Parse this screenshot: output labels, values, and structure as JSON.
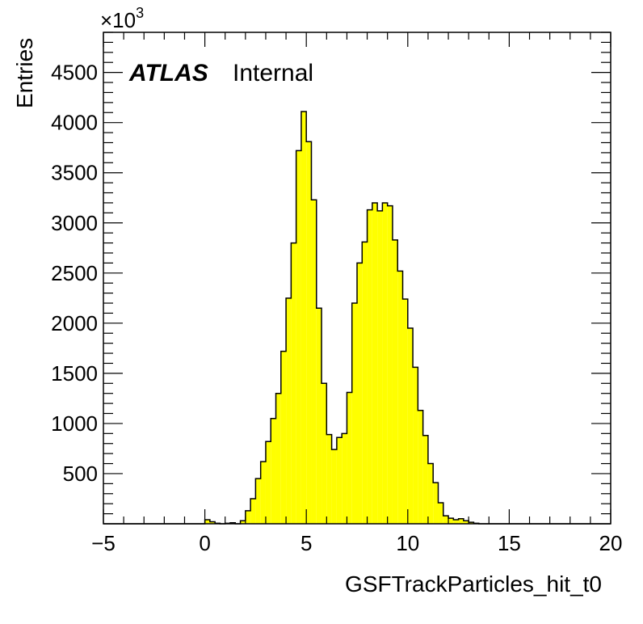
{
  "chart_data": {
    "type": "bar",
    "style": "histogram-step",
    "fill_color": "#ffff00",
    "line_color": "#000000",
    "xlabel": "GSFTrackParticles_hit_t0",
    "ylabel": "Entries",
    "y_scale_label": "×10",
    "y_scale_exponent": "3",
    "y_multiplier": 1000,
    "xlim": [
      -5,
      20
    ],
    "ylim": [
      0,
      4900
    ],
    "x_ticks": [
      "−5",
      "0",
      "5",
      "10",
      "15",
      "20"
    ],
    "x_tick_values": [
      -5,
      0,
      5,
      10,
      15,
      20
    ],
    "y_ticks": [
      "500",
      "1000",
      "1500",
      "2000",
      "2500",
      "3000",
      "3500",
      "4000",
      "4500"
    ],
    "y_tick_values": [
      500,
      1000,
      1500,
      2000,
      2500,
      3000,
      3500,
      4000,
      4500
    ],
    "bin_width": 0.25,
    "bin_edges_start": -5,
    "series": [
      {
        "values": [
          0,
          0,
          0,
          0,
          0,
          0,
          0,
          0,
          0,
          0,
          0,
          0,
          0,
          0,
          0,
          0,
          0,
          0,
          0,
          0,
          40,
          20,
          5,
          0,
          5,
          10,
          0,
          30,
          130,
          250,
          450,
          620,
          820,
          1050,
          1300,
          1720,
          2250,
          2800,
          3720,
          4110,
          3810,
          3230,
          2150,
          1400,
          890,
          740,
          860,
          900,
          1310,
          2200,
          2600,
          2810,
          3130,
          3200,
          3120,
          3200,
          3170,
          2830,
          2520,
          2240,
          1950,
          1560,
          1130,
          880,
          600,
          410,
          210,
          80,
          55,
          40,
          50,
          30,
          15,
          5,
          0,
          0,
          0,
          0,
          0,
          0,
          0,
          0,
          0,
          0,
          0,
          0,
          0,
          0,
          0,
          0,
          0,
          0,
          0,
          0,
          0,
          0,
          0,
          0,
          0,
          0
        ]
      }
    ]
  },
  "labels": {
    "experiment": "ATLAS",
    "status": "Internal"
  }
}
